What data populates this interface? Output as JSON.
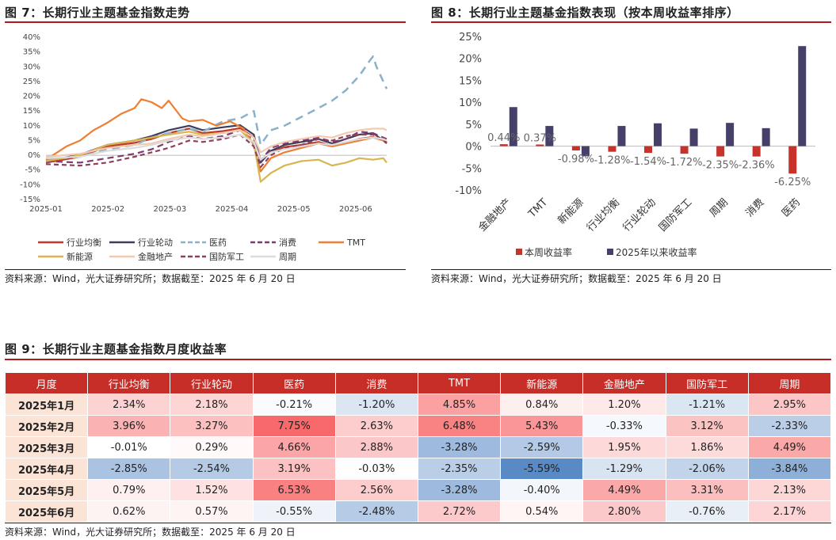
{
  "fig7": {
    "title": "图 7：长期行业主题基金指数走势",
    "source": "资料来源：Wind，光大证券研究所；数据截至：2025 年 6 月 20 日"
  },
  "fig8": {
    "title": "图 8：长期行业主题基金指数表现（按本周收益率排序）",
    "source": "资料来源：Wind，光大证券研究所；数据截至：2025 年 6 月 20 日"
  },
  "fig9": {
    "title": "图 9：长期行业主题基金指数月度收益率",
    "source": "资料来源：Wind，光大证券研究所；数据截至：2025 年 6 月 20 日"
  },
  "chart_data": [
    {
      "type": "line",
      "x_ticks": [
        "2025-01",
        "2025-02",
        "2025-03",
        "2025-04",
        "2025-05",
        "2025-06"
      ],
      "y_ticks": [
        "40%",
        "35%",
        "30%",
        "25%",
        "20%",
        "15%",
        "10%",
        "5%",
        "0%",
        "-5%",
        "-10%",
        "-15%"
      ],
      "ylim": [
        -15,
        40
      ],
      "grid": false,
      "legend_position": "bottom",
      "series": [
        {
          "name": "行业均衡",
          "color": "#c0392b",
          "dash": "solid",
          "points": [
            [
              0,
              -2.5
            ],
            [
              10,
              -0.5
            ],
            [
              18,
              3
            ],
            [
              26,
              4.2
            ],
            [
              31,
              5.5
            ],
            [
              36,
              7.5
            ],
            [
              42,
              9.0
            ],
            [
              46,
              7.5
            ],
            [
              52,
              8.2
            ],
            [
              57,
              9.2
            ],
            [
              61,
              6.0
            ],
            [
              63,
              -1.5
            ],
            [
              66,
              1.0
            ],
            [
              70,
              2.8
            ],
            [
              75,
              3.5
            ],
            [
              80,
              4.5
            ],
            [
              84,
              3.3
            ],
            [
              88,
              4.2
            ],
            [
              92,
              5.6
            ],
            [
              96,
              6.2
            ],
            [
              99,
              5.0
            ],
            [
              100,
              4.0
            ]
          ]
        },
        {
          "name": "行业轮动",
          "color": "#3f3d5a",
          "dash": "solid",
          "points": [
            [
              0,
              -2.0
            ],
            [
              10,
              0.2
            ],
            [
              18,
              3.5
            ],
            [
              26,
              5.0
            ],
            [
              31,
              6.5
            ],
            [
              36,
              8.5
            ],
            [
              42,
              10.0
            ],
            [
              46,
              8.5
            ],
            [
              52,
              9.5
            ],
            [
              57,
              10.2
            ],
            [
              61,
              7.0
            ],
            [
              63,
              -2.5
            ],
            [
              66,
              1.5
            ],
            [
              70,
              3.5
            ],
            [
              75,
              4.5
            ],
            [
              80,
              5.5
            ],
            [
              84,
              4.0
            ],
            [
              88,
              5.5
            ],
            [
              92,
              7.0
            ],
            [
              96,
              7.5
            ],
            [
              99,
              5.0
            ],
            [
              100,
              4.2
            ]
          ]
        },
        {
          "name": "医药",
          "color": "#8bb1c8",
          "dash": "10,7",
          "points": [
            [
              0,
              -1.5
            ],
            [
              10,
              -0.5
            ],
            [
              18,
              2.0
            ],
            [
              26,
              3.5
            ],
            [
              31,
              6.0
            ],
            [
              36,
              7.5
            ],
            [
              42,
              9.0
            ],
            [
              46,
              8.0
            ],
            [
              52,
              11.5
            ],
            [
              57,
              12.5
            ],
            [
              61,
              15.0
            ],
            [
              63,
              3.5
            ],
            [
              66,
              8.5
            ],
            [
              70,
              10.0
            ],
            [
              75,
              13.0
            ],
            [
              80,
              16.0
            ],
            [
              84,
              18.5
            ],
            [
              88,
              22.0
            ],
            [
              92,
              27.0
            ],
            [
              95,
              32.0
            ],
            [
              96,
              33.5
            ],
            [
              97,
              30.0
            ],
            [
              99,
              25.0
            ],
            [
              100,
              22.5
            ]
          ]
        },
        {
          "name": "消费",
          "color": "#7d3b72",
          "dash": "8,5",
          "points": [
            [
              0,
              -2.0
            ],
            [
              10,
              -2.5
            ],
            [
              18,
              -1.0
            ],
            [
              26,
              0.5
            ],
            [
              31,
              2.0
            ],
            [
              36,
              4.5
            ],
            [
              42,
              6.5
            ],
            [
              46,
              5.5
            ],
            [
              52,
              6.5
            ],
            [
              57,
              8.5
            ],
            [
              61,
              5.5
            ],
            [
              63,
              -2.0
            ],
            [
              66,
              2.5
            ],
            [
              70,
              4.0
            ],
            [
              75,
              5.0
            ],
            [
              80,
              6.0
            ],
            [
              84,
              4.5
            ],
            [
              88,
              5.5
            ],
            [
              92,
              8.0
            ],
            [
              96,
              7.5
            ],
            [
              99,
              6.0
            ],
            [
              100,
              5.5
            ]
          ]
        },
        {
          "name": "TMT",
          "color": "#ef7d32",
          "dash": "solid",
          "points": [
            [
              0,
              -1.5
            ],
            [
              6,
              3.0
            ],
            [
              10,
              5.0
            ],
            [
              14,
              8.5
            ],
            [
              18,
              11.0
            ],
            [
              22,
              14.0
            ],
            [
              26,
              16.0
            ],
            [
              28,
              19.0
            ],
            [
              31,
              18.0
            ],
            [
              34,
              16.0
            ],
            [
              36,
              18.5
            ],
            [
              40,
              12.5
            ],
            [
              42,
              11.5
            ],
            [
              46,
              12.0
            ],
            [
              50,
              10.0
            ],
            [
              54,
              11.5
            ],
            [
              58,
              9.0
            ],
            [
              61,
              3.5
            ],
            [
              63,
              -5.5
            ],
            [
              66,
              -1.0
            ],
            [
              70,
              1.0
            ],
            [
              75,
              2.5
            ],
            [
              80,
              4.0
            ],
            [
              84,
              3.0
            ],
            [
              88,
              4.0
            ],
            [
              92,
              5.0
            ],
            [
              96,
              6.0
            ],
            [
              99,
              5.0
            ],
            [
              100,
              4.5
            ]
          ]
        },
        {
          "name": "新能源",
          "color": "#d8b54f",
          "dash": "solid",
          "points": [
            [
              0,
              -2.0
            ],
            [
              10,
              0.0
            ],
            [
              18,
              3.5
            ],
            [
              26,
              5.0
            ],
            [
              31,
              6.0
            ],
            [
              36,
              7.0
            ],
            [
              42,
              8.0
            ],
            [
              46,
              7.0
            ],
            [
              52,
              7.5
            ],
            [
              57,
              8.5
            ],
            [
              61,
              4.0
            ],
            [
              63,
              -9.0
            ],
            [
              66,
              -6.0
            ],
            [
              70,
              -3.5
            ],
            [
              75,
              -2.0
            ],
            [
              80,
              -1.5
            ],
            [
              84,
              -3.5
            ],
            [
              88,
              -2.5
            ],
            [
              92,
              -1.0
            ],
            [
              96,
              -1.5
            ],
            [
              99,
              -1.0
            ],
            [
              100,
              -2.5
            ]
          ]
        },
        {
          "name": "金融地产",
          "color": "#f4c9b0",
          "dash": "solid",
          "points": [
            [
              0,
              -0.5
            ],
            [
              10,
              0.5
            ],
            [
              18,
              2.5
            ],
            [
              26,
              3.5
            ],
            [
              31,
              4.0
            ],
            [
              36,
              5.5
            ],
            [
              42,
              7.0
            ],
            [
              46,
              6.5
            ],
            [
              52,
              7.5
            ],
            [
              57,
              8.5
            ],
            [
              61,
              6.0
            ],
            [
              63,
              1.0
            ],
            [
              66,
              3.0
            ],
            [
              70,
              4.5
            ],
            [
              75,
              5.5
            ],
            [
              80,
              6.5
            ],
            [
              84,
              6.0
            ],
            [
              88,
              7.5
            ],
            [
              92,
              8.5
            ],
            [
              96,
              9.0
            ],
            [
              99,
              9.0
            ],
            [
              100,
              8.5
            ]
          ]
        },
        {
          "name": "国防军工",
          "color": "#8f3f58",
          "dash": "6,4",
          "points": [
            [
              0,
              -3.0
            ],
            [
              10,
              -3.5
            ],
            [
              18,
              -2.5
            ],
            [
              26,
              -0.5
            ],
            [
              31,
              1.0
            ],
            [
              36,
              2.5
            ],
            [
              42,
              5.0
            ],
            [
              46,
              4.5
            ],
            [
              52,
              5.5
            ],
            [
              57,
              7.0
            ],
            [
              61,
              3.0
            ],
            [
              63,
              -4.0
            ],
            [
              66,
              0.0
            ],
            [
              70,
              2.5
            ],
            [
              75,
              3.5
            ],
            [
              80,
              5.5
            ],
            [
              84,
              5.0
            ],
            [
              88,
              6.5
            ],
            [
              92,
              7.0
            ],
            [
              96,
              7.0
            ],
            [
              99,
              5.0
            ],
            [
              100,
              4.5
            ]
          ]
        },
        {
          "name": "周期",
          "color": "#dcdcdc",
          "dash": "solid",
          "points": [
            [
              0,
              -1.0
            ],
            [
              10,
              -0.5
            ],
            [
              18,
              1.5
            ],
            [
              26,
              2.5
            ],
            [
              31,
              3.5
            ],
            [
              36,
              5.0
            ],
            [
              42,
              6.0
            ],
            [
              46,
              5.5
            ],
            [
              52,
              6.0
            ],
            [
              57,
              7.0
            ],
            [
              61,
              4.5
            ],
            [
              63,
              -1.5
            ],
            [
              66,
              1.0
            ],
            [
              70,
              2.0
            ],
            [
              75,
              3.0
            ],
            [
              80,
              4.0
            ],
            [
              84,
              3.5
            ],
            [
              88,
              4.5
            ],
            [
              92,
              5.5
            ],
            [
              96,
              6.0
            ],
            [
              99,
              5.5
            ],
            [
              100,
              5.0
            ]
          ]
        }
      ]
    },
    {
      "type": "bar",
      "categories": [
        "金融地产",
        "TMT",
        "新能源",
        "行业均衡",
        "行业轮动",
        "国防军工",
        "周期",
        "消费",
        "医药"
      ],
      "series": [
        {
          "name": "本周收益率",
          "color": "#c7322a",
          "values": [
            0.44,
            0.37,
            -0.98,
            -1.28,
            -1.54,
            -1.72,
            -2.35,
            -2.36,
            -6.25
          ],
          "labels": [
            "0.44%",
            "0.37%",
            "-0.98%",
            "-1.28%",
            "-1.54%",
            "-1.72%",
            "-2.35%",
            "-2.36%",
            "-6.25%"
          ]
        },
        {
          "name": "2025年以来收益率",
          "color": "#44406a",
          "values": [
            8.9,
            4.6,
            -2.3,
            4.6,
            5.2,
            4.0,
            5.3,
            4.1,
            22.8
          ]
        }
      ],
      "y_ticks": [
        "25%",
        "20%",
        "15%",
        "10%",
        "5%",
        "0%",
        "-5%",
        "-10%"
      ],
      "ylim": [
        -10,
        25
      ],
      "grid": false,
      "legend_position": "bottom"
    },
    {
      "type": "table",
      "columns": [
        "月度",
        "行业均衡",
        "行业轮动",
        "医药",
        "消费",
        "TMT",
        "新能源",
        "金融地产",
        "国防军工",
        "周期"
      ],
      "rows": [
        {
          "label": "2025年1月",
          "cells": [
            "2.34%",
            "2.18%",
            "-0.21%",
            "-1.20%",
            "4.85%",
            "0.84%",
            "1.20%",
            "-1.21%",
            "2.95%"
          ],
          "values": [
            2.34,
            2.18,
            -0.21,
            -1.2,
            4.85,
            0.84,
            1.2,
            -1.21,
            2.95
          ]
        },
        {
          "label": "2025年2月",
          "cells": [
            "3.96%",
            "3.27%",
            "7.75%",
            "2.63%",
            "6.48%",
            "5.43%",
            "-0.33%",
            "3.12%",
            "-2.33%"
          ],
          "values": [
            3.96,
            3.27,
            7.75,
            2.63,
            6.48,
            5.43,
            -0.33,
            3.12,
            -2.33
          ]
        },
        {
          "label": "2025年3月",
          "cells": [
            "-0.01%",
            "0.29%",
            "4.66%",
            "2.88%",
            "-3.28%",
            "-2.59%",
            "1.95%",
            "1.86%",
            "4.49%"
          ],
          "values": [
            -0.01,
            0.29,
            4.66,
            2.88,
            -3.28,
            -2.59,
            1.95,
            1.86,
            4.49
          ]
        },
        {
          "label": "2025年4月",
          "cells": [
            "-2.85%",
            "-2.54%",
            "3.19%",
            "-0.03%",
            "-2.35%",
            "-5.59%",
            "-1.29%",
            "-2.06%",
            "-3.84%"
          ],
          "values": [
            -2.85,
            -2.54,
            3.19,
            -0.03,
            -2.35,
            -5.59,
            -1.29,
            -2.06,
            -3.84
          ]
        },
        {
          "label": "2025年5月",
          "cells": [
            "0.79%",
            "1.52%",
            "6.53%",
            "2.56%",
            "-3.28%",
            "-0.40%",
            "4.49%",
            "3.31%",
            "2.13%"
          ],
          "values": [
            0.79,
            1.52,
            6.53,
            2.56,
            -3.28,
            -0.4,
            4.49,
            3.31,
            2.13
          ]
        },
        {
          "label": "2025年6月",
          "cells": [
            "0.62%",
            "0.57%",
            "-0.55%",
            "-2.48%",
            "2.72%",
            "0.54%",
            "2.80%",
            "-0.76%",
            "2.17%"
          ],
          "values": [
            0.62,
            0.57,
            -0.55,
            -2.48,
            2.72,
            0.54,
            2.8,
            -0.76,
            2.17
          ]
        }
      ]
    }
  ]
}
